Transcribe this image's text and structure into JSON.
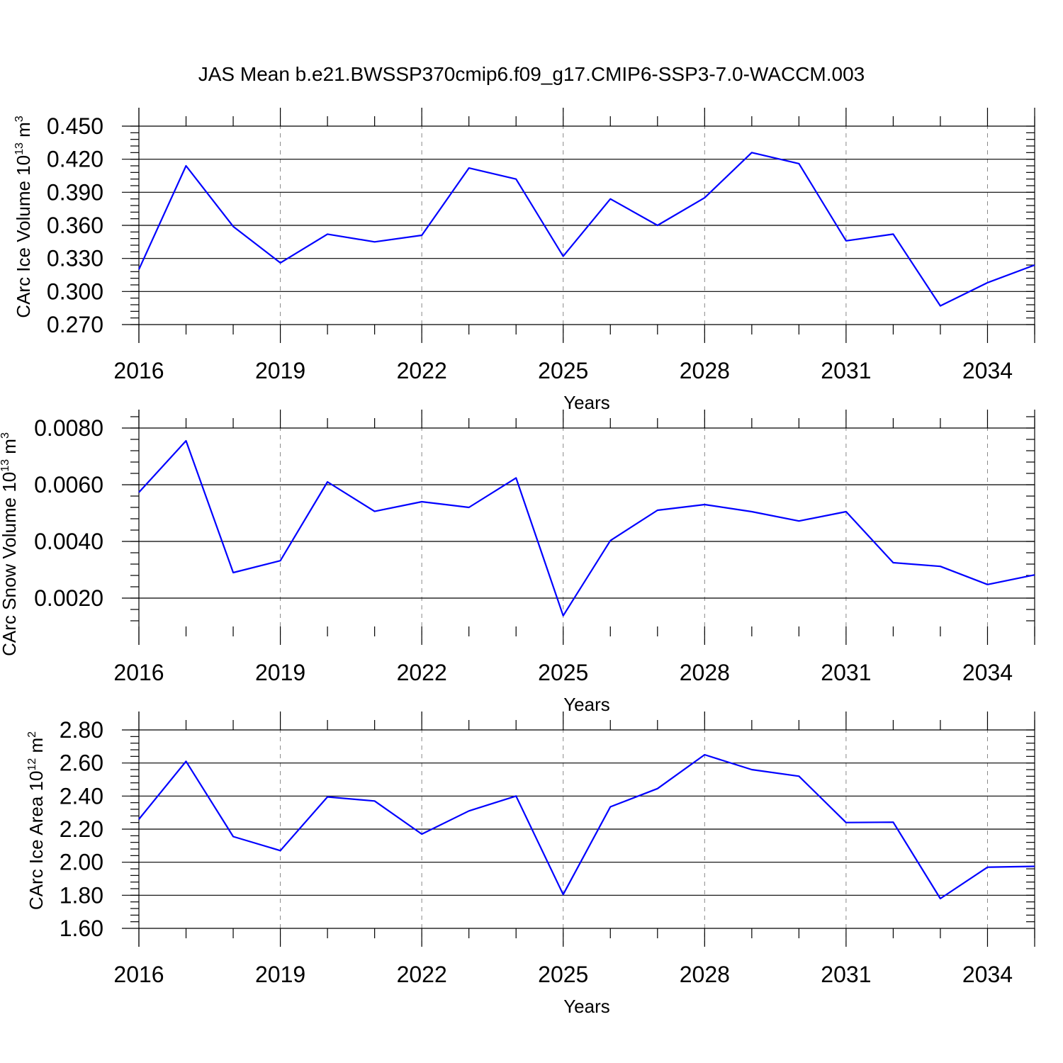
{
  "title": "JAS Mean b.e21.BWSSP370cmip6.f09_g17.CMIP6-SSP3-7.0-WACCM.003",
  "line_color": "#0000ff",
  "chart_data": [
    {
      "type": "line",
      "xlabel": "Years",
      "ylabel": {
        "main": "CArc Ice Volume 10",
        "sup1": "13",
        "unit": " m",
        "sup2": "3"
      },
      "x": [
        2016,
        2017,
        2018,
        2019,
        2020,
        2021,
        2022,
        2023,
        2024,
        2025,
        2026,
        2027,
        2028,
        2029,
        2030,
        2031,
        2032,
        2033,
        2034,
        2035
      ],
      "series": [
        {
          "values": [
            0.32,
            0.414,
            0.359,
            0.326,
            0.352,
            0.345,
            0.351,
            0.412,
            0.402,
            0.332,
            0.384,
            0.36,
            0.385,
            0.426,
            0.416,
            0.346,
            0.352,
            0.287,
            0.308,
            0.324
          ]
        }
      ],
      "xlim": [
        2016,
        2035
      ],
      "ylim": [
        0.27,
        0.45
      ],
      "yticks": [
        "0.450",
        "0.420",
        "0.390",
        "0.360",
        "0.330",
        "0.300",
        "0.270"
      ],
      "xticks": [
        "2016",
        "2019",
        "2022",
        "2025",
        "2028",
        "2031",
        "2034"
      ],
      "grid": "vertical dashed at major x ticks"
    },
    {
      "type": "line",
      "xlabel": "Years",
      "ylabel": {
        "main": "CArc Snow Volume 10",
        "sup1": "13",
        "unit": " m",
        "sup2": "3"
      },
      "x": [
        2016,
        2017,
        2018,
        2019,
        2020,
        2021,
        2022,
        2023,
        2024,
        2025,
        2026,
        2027,
        2028,
        2029,
        2030,
        2031,
        2032,
        2033,
        2034,
        2035
      ],
      "series": [
        {
          "values": [
            0.00573,
            0.00755,
            0.0029,
            0.00332,
            0.0061,
            0.00506,
            0.0054,
            0.0052,
            0.00624,
            0.00138,
            0.00403,
            0.0051,
            0.0053,
            0.00505,
            0.00472,
            0.00505,
            0.00325,
            0.00312,
            0.00248,
            0.00282
          ]
        }
      ],
      "xlim": [
        2016,
        2035
      ],
      "ylim": [
        0.001,
        0.0087
      ],
      "yticks": [
        "0.0080",
        "0.0060",
        "0.0040",
        "0.0020"
      ],
      "xticks": [
        "2016",
        "2019",
        "2022",
        "2025",
        "2028",
        "2031",
        "2034"
      ],
      "grid": "vertical dashed at major x ticks"
    },
    {
      "type": "line",
      "xlabel": "Years",
      "ylabel": {
        "main": "CArc Ice Area 10",
        "sup1": "12",
        "unit": " m",
        "sup2": "2"
      },
      "x": [
        2016,
        2017,
        2018,
        2019,
        2020,
        2021,
        2022,
        2023,
        2024,
        2025,
        2026,
        2027,
        2028,
        2029,
        2030,
        2031,
        2032,
        2033,
        2034,
        2035
      ],
      "series": [
        {
          "values": [
            2.26,
            2.61,
            2.155,
            2.07,
            2.395,
            2.37,
            2.17,
            2.31,
            2.4,
            1.805,
            2.335,
            2.445,
            2.65,
            2.56,
            2.52,
            2.24,
            2.242,
            1.78,
            1.97,
            1.975
          ]
        }
      ],
      "xlim": [
        2016,
        2035
      ],
      "ylim": [
        1.6,
        2.8
      ],
      "yticks": [
        "2.80",
        "2.60",
        "2.40",
        "2.20",
        "2.00",
        "1.80",
        "1.60"
      ],
      "xticks": [
        "2016",
        "2019",
        "2022",
        "2025",
        "2028",
        "2031",
        "2034"
      ],
      "grid": "vertical dashed at major x ticks"
    }
  ]
}
